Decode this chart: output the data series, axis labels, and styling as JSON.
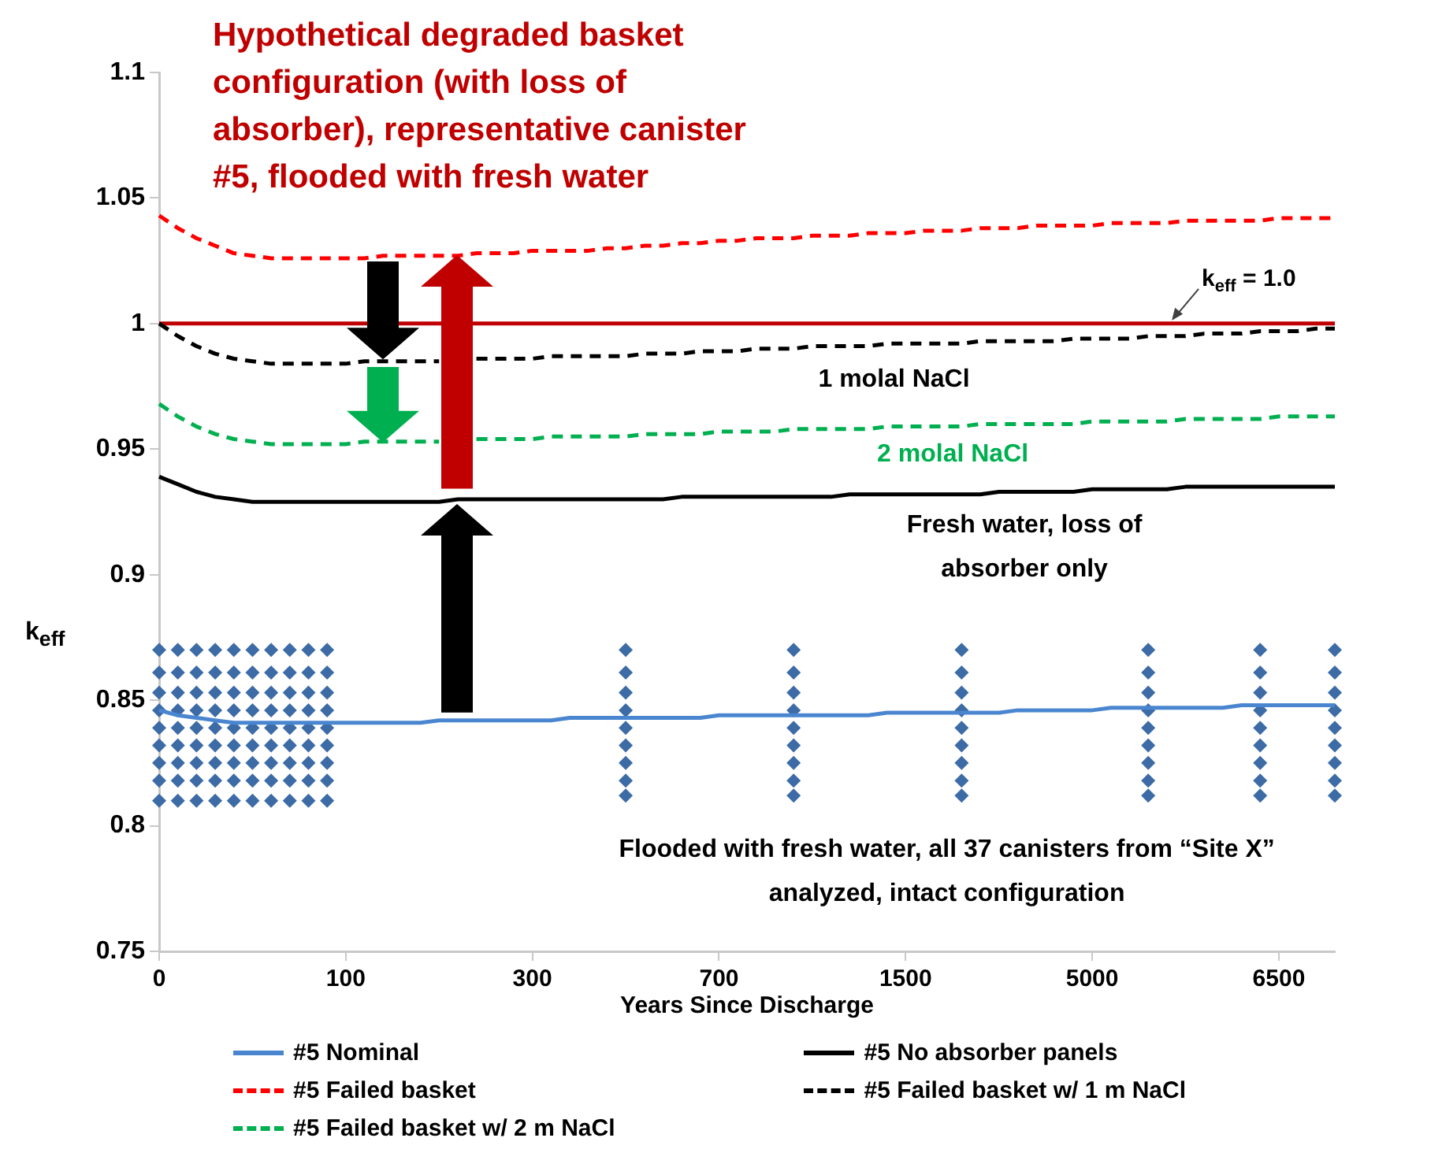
{
  "chart_data": {
    "type": "line",
    "title": "Hypothetical degraded basket configuration (with loss of absorber), representative canister #5, flooded with fresh water",
    "xlabel": "Years Since Discharge",
    "ylabel": "k$_{eff}$",
    "categories": [
      "0",
      null,
      null,
      null,
      null,
      null,
      null,
      null,
      null,
      null,
      "100",
      null,
      null,
      null,
      null,
      null,
      null,
      null,
      null,
      null,
      "300",
      null,
      null,
      null,
      null,
      null,
      null,
      null,
      null,
      null,
      "700",
      null,
      null,
      null,
      null,
      null,
      null,
      null,
      null,
      null,
      "1500",
      null,
      null,
      null,
      null,
      null,
      null,
      null,
      null,
      null,
      "5000",
      null,
      null,
      null,
      null,
      null,
      null,
      null,
      null,
      null,
      "6500",
      null,
      null,
      null
    ],
    "ylim": [
      0.75,
      1.1
    ],
    "yticks": [
      0.75,
      0.8,
      0.85,
      0.9,
      0.95,
      1,
      1.05,
      1.1
    ],
    "legend": "bottom",
    "series": [
      {
        "name": "#5 Nominal",
        "color": "#4a86d0",
        "line_style": "solid",
        "values": [
          0.846,
          0.844,
          0.843,
          0.842,
          0.841,
          0.841,
          0.841,
          0.841,
          0.841,
          0.841,
          0.841,
          0.841,
          0.841,
          0.841,
          0.841,
          0.842,
          0.842,
          0.842,
          0.842,
          0.842,
          0.842,
          0.842,
          0.843,
          0.843,
          0.843,
          0.843,
          0.843,
          0.843,
          0.843,
          0.843,
          0.844,
          0.844,
          0.844,
          0.844,
          0.844,
          0.844,
          0.844,
          0.844,
          0.844,
          0.845,
          0.845,
          0.845,
          0.845,
          0.845,
          0.845,
          0.845,
          0.846,
          0.846,
          0.846,
          0.846,
          0.846,
          0.847,
          0.847,
          0.847,
          0.847,
          0.847,
          0.847,
          0.847,
          0.848,
          0.848,
          0.848,
          0.848,
          0.848,
          0.848
        ]
      },
      {
        "name": "#5 Failed basket",
        "color": "#ff0000",
        "line_style": "dashed",
        "values": [
          1.043,
          1.038,
          1.034,
          1.031,
          1.028,
          1.027,
          1.026,
          1.026,
          1.026,
          1.026,
          1.026,
          1.026,
          1.027,
          1.027,
          1.027,
          1.027,
          1.027,
          1.028,
          1.028,
          1.028,
          1.029,
          1.029,
          1.029,
          1.029,
          1.03,
          1.03,
          1.031,
          1.031,
          1.032,
          1.032,
          1.033,
          1.033,
          1.034,
          1.034,
          1.034,
          1.035,
          1.035,
          1.035,
          1.036,
          1.036,
          1.036,
          1.037,
          1.037,
          1.037,
          1.038,
          1.038,
          1.038,
          1.039,
          1.039,
          1.039,
          1.039,
          1.04,
          1.04,
          1.04,
          1.04,
          1.041,
          1.041,
          1.041,
          1.041,
          1.041,
          1.042,
          1.042,
          1.042,
          1.042
        ]
      },
      {
        "name": "#5 Failed basket w/ 2 m NaCl",
        "color": "#00b050",
        "line_style": "dashed",
        "values": [
          0.968,
          0.963,
          0.959,
          0.956,
          0.954,
          0.953,
          0.952,
          0.952,
          0.952,
          0.952,
          0.952,
          0.953,
          0.953,
          0.953,
          0.953,
          0.953,
          null,
          0.954,
          0.954,
          0.954,
          0.954,
          0.955,
          0.955,
          0.955,
          0.955,
          0.955,
          0.956,
          0.956,
          0.956,
          0.956,
          0.957,
          0.957,
          0.957,
          0.957,
          0.958,
          0.958,
          0.958,
          0.958,
          0.958,
          0.959,
          0.959,
          0.959,
          0.959,
          0.959,
          0.96,
          0.96,
          0.96,
          0.96,
          0.96,
          0.96,
          0.961,
          0.961,
          0.961,
          0.961,
          0.961,
          0.962,
          0.962,
          0.962,
          0.962,
          0.962,
          0.963,
          0.963,
          0.963,
          0.963
        ]
      },
      {
        "name": "#5 No absorber panels",
        "color": "#000000",
        "line_style": "solid",
        "values": [
          0.939,
          0.936,
          0.933,
          0.931,
          0.93,
          0.929,
          0.929,
          0.929,
          0.929,
          0.929,
          0.929,
          0.929,
          0.929,
          0.929,
          0.929,
          0.929,
          0.93,
          0.93,
          0.93,
          0.93,
          0.93,
          0.93,
          0.93,
          0.93,
          0.93,
          0.93,
          0.93,
          0.93,
          0.931,
          0.931,
          0.931,
          0.931,
          0.931,
          0.931,
          0.931,
          0.931,
          0.931,
          0.932,
          0.932,
          0.932,
          0.932,
          0.932,
          0.932,
          0.932,
          0.932,
          0.933,
          0.933,
          0.933,
          0.933,
          0.933,
          0.934,
          0.934,
          0.934,
          0.934,
          0.934,
          0.935,
          0.935,
          0.935,
          0.935,
          0.935,
          0.935,
          0.935,
          0.935,
          0.935
        ]
      },
      {
        "name": "#5 Failed basket w/ 1 m NaCl",
        "color": "#000000",
        "line_style": "dashed",
        "values": [
          1.0,
          0.995,
          0.991,
          0.988,
          0.986,
          0.985,
          0.984,
          0.984,
          0.984,
          0.984,
          0.984,
          0.985,
          0.985,
          0.985,
          0.985,
          0.985,
          null,
          0.986,
          0.986,
          0.986,
          0.986,
          0.987,
          0.987,
          0.987,
          0.987,
          0.987,
          0.988,
          0.988,
          0.988,
          0.989,
          0.989,
          0.989,
          0.99,
          0.99,
          0.99,
          0.991,
          0.991,
          0.991,
          0.991,
          0.992,
          0.992,
          0.992,
          0.992,
          0.992,
          0.993,
          0.993,
          0.993,
          0.993,
          0.993,
          0.994,
          0.994,
          0.994,
          0.994,
          0.995,
          0.995,
          0.995,
          0.996,
          0.996,
          0.996,
          0.997,
          0.997,
          0.997,
          0.998,
          0.998
        ]
      },
      {
        "type": "scatter",
        "color": "#3c6ba6",
        "marker": "diamond",
        "values": [
          0.87,
          0.87,
          0.87,
          0.87,
          0.87,
          0.87,
          0.87,
          0.87,
          0.87,
          0.87,
          null,
          null,
          null,
          null,
          null,
          null,
          null,
          null,
          null,
          null,
          null,
          null,
          null,
          null,
          null,
          0.87,
          null,
          null,
          null,
          null,
          null,
          null,
          null,
          null,
          0.87,
          null,
          null,
          null,
          null,
          null,
          null,
          null,
          null,
          0.87,
          null,
          null,
          null,
          null,
          null,
          null,
          null,
          null,
          null,
          0.87,
          null,
          null,
          null,
          null,
          null,
          0.87,
          null,
          null,
          null,
          0.87
        ]
      },
      {
        "type": "scatter",
        "color": "#3c6ba6",
        "marker": "diamond",
        "values": [
          0.861,
          0.861,
          0.861,
          0.861,
          0.861,
          0.861,
          0.861,
          0.861,
          0.861,
          0.861,
          null,
          null,
          null,
          null,
          null,
          null,
          null,
          null,
          null,
          null,
          null,
          null,
          null,
          null,
          null,
          0.861,
          null,
          null,
          null,
          null,
          null,
          null,
          null,
          null,
          0.861,
          null,
          null,
          null,
          null,
          null,
          null,
          null,
          null,
          0.861,
          null,
          null,
          null,
          null,
          null,
          null,
          null,
          null,
          null,
          0.861,
          null,
          null,
          null,
          null,
          null,
          0.861,
          null,
          null,
          null,
          0.861
        ]
      },
      {
        "type": "scatter",
        "color": "#3c6ba6",
        "marker": "diamond",
        "values": [
          0.853,
          0.853,
          0.853,
          0.853,
          0.853,
          0.853,
          0.853,
          0.853,
          0.853,
          0.853,
          null,
          null,
          null,
          null,
          null,
          null,
          null,
          null,
          null,
          null,
          null,
          null,
          null,
          null,
          null,
          0.853,
          null,
          null,
          null,
          null,
          null,
          null,
          null,
          null,
          0.853,
          null,
          null,
          null,
          null,
          null,
          null,
          null,
          null,
          0.853,
          null,
          null,
          null,
          null,
          null,
          null,
          null,
          null,
          null,
          0.853,
          null,
          null,
          null,
          null,
          null,
          0.853,
          null,
          null,
          null,
          0.853
        ]
      },
      {
        "type": "scatter",
        "color": "#3c6ba6",
        "marker": "diamond",
        "values": [
          0.846,
          0.846,
          0.846,
          0.846,
          0.846,
          0.846,
          0.846,
          0.846,
          0.846,
          0.846,
          null,
          null,
          null,
          null,
          null,
          null,
          null,
          null,
          null,
          null,
          null,
          null,
          null,
          null,
          null,
          0.846,
          null,
          null,
          null,
          null,
          null,
          null,
          null,
          null,
          0.846,
          null,
          null,
          null,
          null,
          null,
          null,
          null,
          null,
          0.846,
          null,
          null,
          null,
          null,
          null,
          null,
          null,
          null,
          null,
          0.846,
          null,
          null,
          null,
          null,
          null,
          0.846,
          null,
          null,
          null,
          0.846
        ]
      },
      {
        "type": "scatter",
        "color": "#3c6ba6",
        "marker": "diamond",
        "values": [
          0.839,
          0.839,
          0.839,
          0.839,
          0.839,
          0.839,
          0.839,
          0.839,
          0.839,
          0.839,
          null,
          null,
          null,
          null,
          null,
          null,
          null,
          null,
          null,
          null,
          null,
          null,
          null,
          null,
          null,
          0.839,
          null,
          null,
          null,
          null,
          null,
          null,
          null,
          null,
          0.839,
          null,
          null,
          null,
          null,
          null,
          null,
          null,
          null,
          0.839,
          null,
          null,
          null,
          null,
          null,
          null,
          null,
          null,
          null,
          0.839,
          null,
          null,
          null,
          null,
          null,
          0.839,
          null,
          null,
          null,
          0.839
        ]
      },
      {
        "type": "scatter",
        "color": "#3c6ba6",
        "marker": "diamond",
        "values": [
          0.832,
          0.832,
          0.832,
          0.832,
          0.832,
          0.832,
          0.832,
          0.832,
          0.832,
          0.832,
          null,
          null,
          null,
          null,
          null,
          null,
          null,
          null,
          null,
          null,
          null,
          null,
          null,
          null,
          null,
          0.832,
          null,
          null,
          null,
          null,
          null,
          null,
          null,
          null,
          0.832,
          null,
          null,
          null,
          null,
          null,
          null,
          null,
          null,
          0.832,
          null,
          null,
          null,
          null,
          null,
          null,
          null,
          null,
          null,
          0.832,
          null,
          null,
          null,
          null,
          null,
          0.832,
          null,
          null,
          null,
          0.832
        ]
      },
      {
        "type": "scatter",
        "color": "#3c6ba6",
        "marker": "diamond",
        "values": [
          0.825,
          0.825,
          0.825,
          0.825,
          0.825,
          0.825,
          0.825,
          0.825,
          0.825,
          0.825,
          null,
          null,
          null,
          null,
          null,
          null,
          null,
          null,
          null,
          null,
          null,
          null,
          null,
          null,
          null,
          0.825,
          null,
          null,
          null,
          null,
          null,
          null,
          null,
          null,
          0.825,
          null,
          null,
          null,
          null,
          null,
          null,
          null,
          null,
          0.825,
          null,
          null,
          null,
          null,
          null,
          null,
          null,
          null,
          null,
          0.825,
          null,
          null,
          null,
          null,
          null,
          0.825,
          null,
          null,
          null,
          0.825
        ]
      },
      {
        "type": "scatter",
        "color": "#3c6ba6",
        "marker": "diamond",
        "values": [
          0.818,
          0.818,
          0.818,
          0.818,
          0.818,
          0.818,
          0.818,
          0.818,
          0.818,
          0.818,
          null,
          null,
          null,
          null,
          null,
          null,
          null,
          null,
          null,
          null,
          null,
          null,
          null,
          null,
          null,
          0.818,
          null,
          null,
          null,
          null,
          null,
          null,
          null,
          null,
          0.818,
          null,
          null,
          null,
          null,
          null,
          null,
          null,
          null,
          0.818,
          null,
          null,
          null,
          null,
          null,
          null,
          null,
          null,
          null,
          0.818,
          null,
          null,
          null,
          null,
          null,
          0.818,
          null,
          null,
          null,
          0.818
        ]
      },
      {
        "type": "scatter",
        "color": "#3c6ba6",
        "marker": "diamond",
        "values": [
          0.81,
          0.81,
          0.81,
          0.81,
          0.81,
          0.81,
          0.81,
          0.81,
          0.81,
          0.81,
          null,
          null,
          null,
          null,
          null,
          null,
          null,
          null,
          null,
          null,
          null,
          null,
          null,
          null,
          null,
          0.812,
          null,
          null,
          null,
          null,
          null,
          null,
          null,
          null,
          0.812,
          null,
          null,
          null,
          null,
          null,
          null,
          null,
          null,
          0.812,
          null,
          null,
          null,
          null,
          null,
          null,
          null,
          null,
          null,
          0.812,
          null,
          null,
          null,
          null,
          null,
          0.812,
          null,
          null,
          null,
          0.812
        ]
      }
    ],
    "ref_lines": [
      {
        "axis": "y",
        "value": 1,
        "label": "k$_{eff}$ = 1.0",
        "color": "#c00000"
      }
    ],
    "annotations": [
      "1 molal NaCl",
      "2 molal NaCl",
      "Fresh water, loss of absorber only",
      "Flooded with fresh water, all 37 canisters from “Site X” analyzed, intact configuration"
    ]
  }
}
